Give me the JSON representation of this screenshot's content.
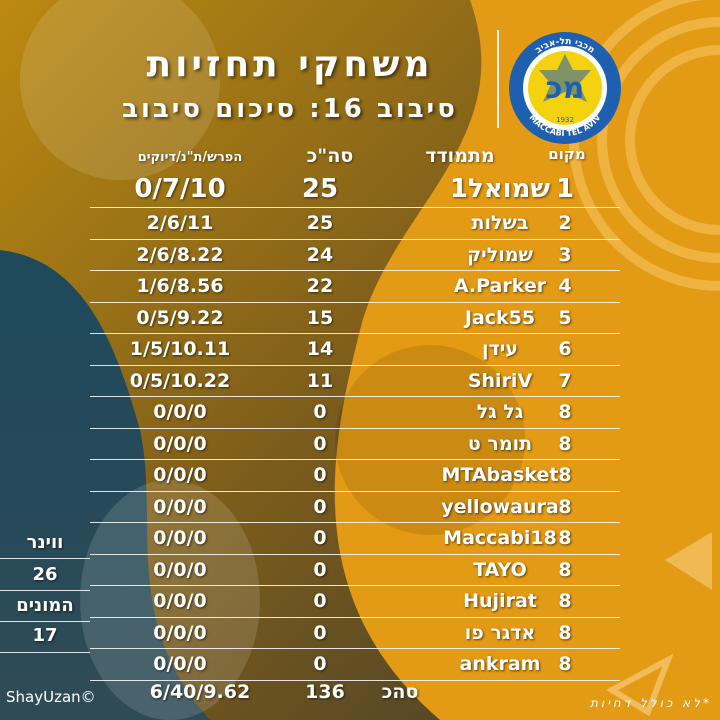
{
  "title": "משחקי תחזיות",
  "subtitle": "סיבוב 16: סיכום סיבוב",
  "logo": {
    "text_top": "מכבי תל-אביב",
    "text_bottom": "MACCABI TEL AVIV",
    "year": "1932",
    "letters": "מכ",
    "colors": {
      "blue": "#1e5fb0",
      "yellow": "#f5d20f"
    }
  },
  "headers": {
    "rank": "מקום",
    "name": "מתמודד",
    "total": "סה\"כ",
    "diff": "הפרש/ת\"נ/דיוקים"
  },
  "rows": [
    {
      "rank": "1",
      "name": "שמואל1",
      "total": "25",
      "diff": "0/7/10"
    },
    {
      "rank": "2",
      "name": "בשלות",
      "total": "25",
      "diff": "2/6/11"
    },
    {
      "rank": "3",
      "name": "שמוליק",
      "total": "24",
      "diff": "2/6/8.22"
    },
    {
      "rank": "4",
      "name": "A.Parker",
      "total": "22",
      "diff": "1/6/8.56"
    },
    {
      "rank": "5",
      "name": "Jack55",
      "total": "15",
      "diff": "0/5/9.22"
    },
    {
      "rank": "6",
      "name": "עידן",
      "total": "14",
      "diff": "1/5/10.11"
    },
    {
      "rank": "7",
      "name": "ShiriV",
      "total": "11",
      "diff": "0/5/10.22"
    },
    {
      "rank": "8",
      "name": "גל גל",
      "total": "0",
      "diff": "0/0/0"
    },
    {
      "rank": "8",
      "name": "תומר ט",
      "total": "0",
      "diff": "0/0/0"
    },
    {
      "rank": "8",
      "name": "MTAbasket",
      "total": "0",
      "diff": "0/0/0"
    },
    {
      "rank": "8",
      "name": "yellowaura",
      "total": "0",
      "diff": "0/0/0"
    },
    {
      "rank": "8",
      "name": "Maccabi18",
      "total": "0",
      "diff": "0/0/0"
    },
    {
      "rank": "8",
      "name": "TAYO",
      "total": "0",
      "diff": "0/0/0"
    },
    {
      "rank": "8",
      "name": "Hujirat",
      "total": "0",
      "diff": "0/0/0"
    },
    {
      "rank": "8",
      "name": "אדגר פו",
      "total": "0",
      "diff": "0/0/0"
    },
    {
      "rank": "8",
      "name": "ankram",
      "total": "0",
      "diff": "0/0/0"
    }
  ],
  "side": {
    "winner_label": "ווינר",
    "winner_value": "26",
    "crowd_label": "המונים",
    "crowd_value": "17"
  },
  "footer": {
    "total_label": "סהכ",
    "total_value": "136",
    "diff_total": "6/40/9.62"
  },
  "credit": "ShayUzan©",
  "note": "*לא כולל דחיות"
}
